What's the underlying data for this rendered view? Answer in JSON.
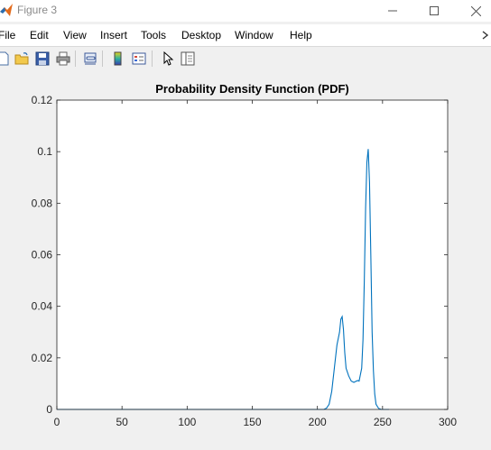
{
  "window": {
    "title": "Figure 3",
    "controls": {
      "minimize": "minimize",
      "maximize": "maximize",
      "close": "close"
    }
  },
  "menu": {
    "items": [
      {
        "label": "File"
      },
      {
        "label": "Edit"
      },
      {
        "label": "View"
      },
      {
        "label": "Insert"
      },
      {
        "label": "Tools"
      },
      {
        "label": "Desktop"
      },
      {
        "label": "Window"
      },
      {
        "label": "Help"
      }
    ]
  },
  "toolbar": {
    "tools": [
      "new-figure-icon",
      "open-file-icon",
      "save-icon",
      "print-icon",
      "link-plot-icon",
      "insert-colorbar-icon",
      "insert-legend-icon",
      "edit-plot-icon",
      "property-inspector-icon"
    ]
  },
  "colors": {
    "line": "#0072BD",
    "axes_background": "#ffffff",
    "figure_background": "#f0f0f0"
  },
  "chart_data": {
    "type": "line",
    "title": "Probability Density Function (PDF)",
    "xlabel": "",
    "ylabel": "",
    "xlim": [
      0,
      300
    ],
    "ylim": [
      0,
      0.12
    ],
    "xticks": [
      "0",
      "50",
      "100",
      "150",
      "200",
      "250",
      "300"
    ],
    "yticks": [
      "0",
      "0.02",
      "0.04",
      "0.06",
      "0.08",
      "0.1",
      "0.12"
    ],
    "grid": false,
    "series": [
      {
        "x": [
          0,
          50,
          100,
          150,
          200,
          205,
          207,
          209,
          211,
          213,
          215,
          217,
          218,
          219,
          220,
          221,
          222,
          224,
          226,
          228,
          230,
          231,
          232,
          234,
          235,
          236,
          237,
          238,
          239,
          240,
          241,
          242,
          243,
          244,
          245,
          247,
          249,
          251,
          253,
          255
        ],
        "y": [
          0,
          0,
          0,
          0,
          0,
          0,
          0.0005,
          0.002,
          0.007,
          0.016,
          0.025,
          0.03,
          0.035,
          0.036,
          0.031,
          0.022,
          0.016,
          0.013,
          0.011,
          0.0105,
          0.011,
          0.0112,
          0.011,
          0.016,
          0.027,
          0.05,
          0.078,
          0.096,
          0.101,
          0.088,
          0.06,
          0.03,
          0.015,
          0.006,
          0.002,
          0.0004,
          0,
          0,
          0,
          0
        ]
      }
    ]
  }
}
